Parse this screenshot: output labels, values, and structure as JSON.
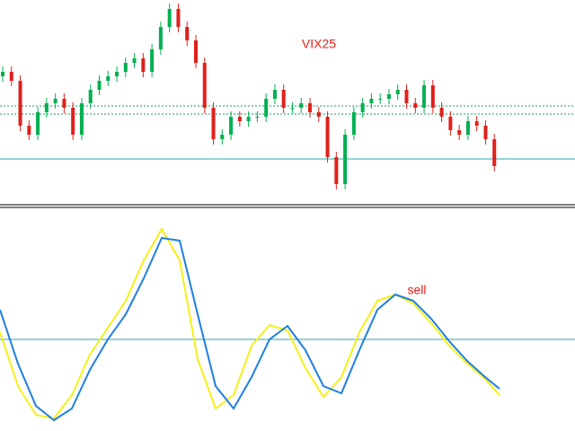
{
  "chart_data": [
    {
      "type": "candlestick",
      "title": "VIX25",
      "opens": [
        145,
        150,
        140,
        90,
        80,
        105,
        115,
        120,
        110,
        80,
        115,
        130,
        140,
        145,
        150,
        160,
        165,
        150,
        175,
        200,
        220,
        200,
        185,
        160,
        110,
        75,
        80,
        100,
        95,
        100,
        100,
        120,
        130,
        110,
        110,
        115,
        105,
        100,
        55,
        25,
        80,
        105,
        115,
        120,
        120,
        125,
        130,
        115,
        110,
        135,
        110,
        100,
        85,
        80,
        95,
        90,
        75
      ],
      "highs": [
        156,
        156,
        146,
        96,
        111,
        121,
        126,
        126,
        116,
        121,
        136,
        146,
        151,
        156,
        166,
        171,
        171,
        181,
        206,
        226,
        226,
        206,
        191,
        166,
        116,
        86,
        106,
        106,
        106,
        106,
        126,
        136,
        136,
        116,
        121,
        121,
        111,
        106,
        61,
        86,
        111,
        121,
        126,
        126,
        131,
        136,
        136,
        121,
        141,
        141,
        116,
        106,
        91,
        101,
        101,
        96,
        81
      ],
      "lows": [
        139,
        134,
        84,
        74,
        74,
        99,
        109,
        104,
        74,
        74,
        109,
        124,
        134,
        139,
        144,
        154,
        144,
        144,
        169,
        194,
        194,
        179,
        154,
        104,
        69,
        69,
        74,
        89,
        89,
        94,
        94,
        114,
        104,
        104,
        104,
        99,
        94,
        49,
        19,
        19,
        74,
        99,
        109,
        114,
        114,
        119,
        109,
        104,
        104,
        104,
        94,
        79,
        74,
        74,
        84,
        69,
        39
      ],
      "closes": [
        150,
        140,
        90,
        80,
        105,
        115,
        120,
        110,
        80,
        115,
        130,
        140,
        145,
        150,
        160,
        165,
        150,
        175,
        200,
        220,
        200,
        185,
        160,
        110,
        75,
        80,
        100,
        95,
        100,
        100,
        120,
        130,
        110,
        110,
        115,
        105,
        100,
        55,
        25,
        80,
        105,
        115,
        120,
        120,
        125,
        130,
        115,
        110,
        135,
        110,
        100,
        85,
        80,
        95,
        90,
        75,
        45
      ],
      "up_color": "#00b050",
      "down_color": "#e0201c",
      "levels": [
        {
          "value": 112,
          "color": "#1a9a6a",
          "style": "dotted"
        },
        {
          "value": 103,
          "color": "#1a9a6a",
          "style": "dotted"
        },
        {
          "value": 53,
          "color": "#2aa8a8",
          "style": "solid"
        }
      ],
      "ylim": [
        0,
        230
      ]
    },
    {
      "type": "line",
      "annotation": "sell",
      "x": [
        0,
        20,
        40,
        60,
        80,
        100,
        120,
        140,
        160,
        180,
        200,
        220,
        240,
        260,
        280,
        300,
        320,
        340,
        360,
        380,
        400,
        420,
        440,
        460,
        480,
        500,
        520,
        540,
        556
      ],
      "series": [
        {
          "color": "#f5f01a",
          "values": [
            8,
            -52,
            -84,
            -88,
            -62,
            -17,
            13,
            43,
            88,
            123,
            88,
            -22,
            -77,
            -62,
            -7,
            16,
            10,
            -32,
            -64,
            -42,
            8,
            43,
            50,
            40,
            18,
            -7,
            -27,
            -44,
            -62
          ]
        },
        {
          "color": "#1e7fe0",
          "values": [
            33,
            -27,
            -74,
            -90,
            -77,
            -34,
            0,
            28,
            68,
            113,
            110,
            28,
            -52,
            -77,
            -42,
            0,
            15,
            -12,
            -52,
            -60,
            -12,
            33,
            50,
            43,
            23,
            -2,
            -24,
            -42,
            -55
          ]
        }
      ],
      "levels": [
        {
          "value": 0,
          "color": "#2aa8a8",
          "style": "solid"
        }
      ],
      "xlim": [
        0,
        640
      ],
      "ylim": [
        -102,
        146
      ]
    }
  ]
}
